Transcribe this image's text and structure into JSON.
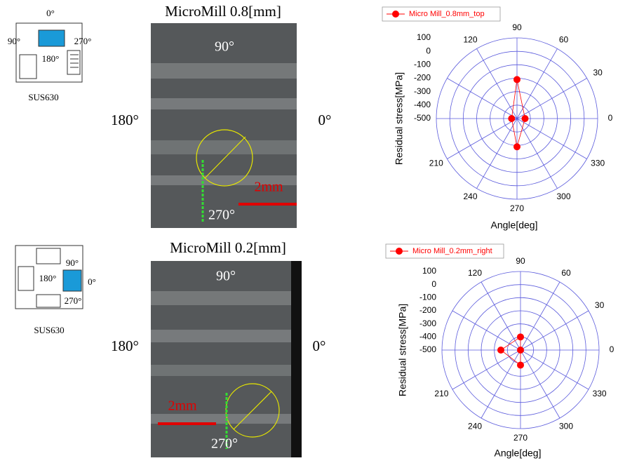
{
  "panels": [
    {
      "title": "MicroMill 0.8[mm]",
      "image_labels": {
        "top": "90°",
        "bottom": "270°",
        "left": "180°",
        "right": "0°",
        "scale": "2mm"
      },
      "diagram": {
        "top": "0°",
        "left": "90°",
        "right": "270°",
        "center": "180°",
        "material": "SUS630"
      }
    },
    {
      "title": "MicroMill 0.2[mm]",
      "image_labels": {
        "top": "90°",
        "bottom": "270°",
        "left": "180°",
        "right": "0°",
        "scale": "2mm"
      },
      "diagram": {
        "top": "90°",
        "right": "0°",
        "bottom": "270°",
        "center": "180°",
        "material": "SUS630"
      }
    }
  ],
  "chart_data": [
    {
      "type": "polar",
      "xlabel": "Angle[deg]",
      "ylabel": "Residual stress[MPa]",
      "theta": [
        0,
        90,
        180,
        270
      ],
      "series": [
        {
          "name": "Micro Mill_0.8mm_top",
          "color": "#ff0000",
          "values": [
            -440,
            -210,
            -460,
            -290
          ]
        }
      ],
      "rlim": [
        -500,
        100
      ],
      "rticks": [
        100,
        0,
        -100,
        -200,
        -300,
        -400,
        -500
      ],
      "thetaticks": [
        0,
        30,
        60,
        90,
        120,
        {
          "value": 150,
          "label": null
        },
        {
          "value": 180,
          "label": null
        },
        210,
        240,
        270,
        300,
        330
      ],
      "grid_color": "#5a5adc"
    },
    {
      "type": "polar",
      "xlabel": "Angle[deg]",
      "ylabel": "Residual stress[MPa]",
      "theta": [
        0,
        90,
        180,
        270
      ],
      "series": [
        {
          "name": "Micro Mill_0.2mm_right",
          "color": "#ff0000",
          "values": [
            -500,
            -400,
            -350,
            -385
          ]
        }
      ],
      "rlim": [
        -500,
        100
      ],
      "rticks": [
        100,
        0,
        -100,
        -200,
        -300,
        -400,
        -500
      ],
      "thetaticks": [
        0,
        30,
        60,
        90,
        120,
        {
          "value": 150,
          "label": null
        },
        {
          "value": 180,
          "label": null
        },
        210,
        240,
        270,
        300,
        330
      ],
      "grid_color": "#5a5adc"
    }
  ]
}
